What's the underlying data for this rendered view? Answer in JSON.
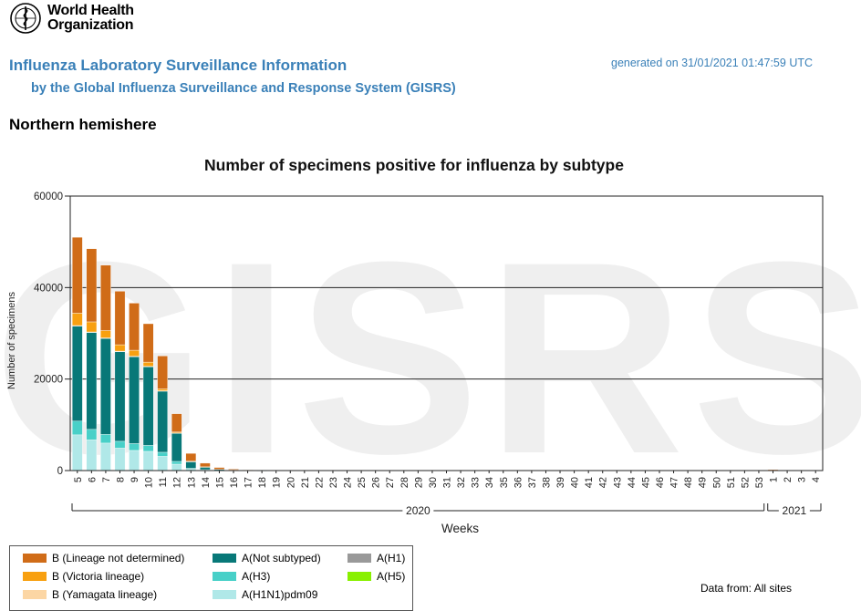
{
  "header": {
    "logo_text_line1": "World Health",
    "logo_text_line2": "Organization",
    "title": "Influenza Laboratory Surveillance Information",
    "subtitle": "by the Global Influenza Surveillance and Response System (GISRS)",
    "generated": "generated on 31/01/2021 01:47:59 UTC",
    "region": "Northern hemishere"
  },
  "footer": {
    "data_from": "Data from: All sites"
  },
  "chart_data": {
    "type": "bar",
    "stacked": true,
    "title": "Number of specimens positive for influenza by subtype",
    "xlabel": "Weeks",
    "ylabel": "Number of specimens",
    "ylim": [
      0,
      60000
    ],
    "yticks": [
      0,
      20000,
      40000,
      60000
    ],
    "grid": true,
    "watermark": "GISRS",
    "legend_position": "bottom",
    "year_groups": [
      {
        "label": "2020",
        "start_index": 0,
        "end_index": 48
      },
      {
        "label": "2021",
        "start_index": 49,
        "end_index": 52
      }
    ],
    "categories": [
      "5",
      "6",
      "7",
      "8",
      "9",
      "10",
      "11",
      "12",
      "13",
      "14",
      "15",
      "16",
      "17",
      "18",
      "19",
      "20",
      "21",
      "22",
      "23",
      "24",
      "25",
      "26",
      "27",
      "28",
      "29",
      "30",
      "31",
      "32",
      "33",
      "34",
      "35",
      "36",
      "37",
      "38",
      "39",
      "40",
      "41",
      "42",
      "43",
      "44",
      "45",
      "46",
      "47",
      "48",
      "49",
      "50",
      "51",
      "52",
      "53",
      "1",
      "2",
      "3",
      "4"
    ],
    "series": [
      {
        "name": "A(H1N1)pdm09",
        "color": "#b0e8e8",
        "values": [
          7800,
          6700,
          6000,
          4900,
          4400,
          4200,
          3100,
          1400,
          300,
          100,
          50,
          20,
          0,
          0,
          0,
          0,
          0,
          0,
          0,
          0,
          0,
          0,
          0,
          0,
          0,
          0,
          0,
          0,
          0,
          0,
          0,
          0,
          0,
          0,
          0,
          0,
          0,
          0,
          0,
          0,
          0,
          0,
          0,
          0,
          0,
          0,
          0,
          0,
          0,
          0,
          0,
          0,
          0
        ]
      },
      {
        "name": "A(H3)",
        "color": "#48d0c8",
        "values": [
          3000,
          2300,
          1900,
          1500,
          1500,
          1300,
          900,
          600,
          200,
          100,
          30,
          10,
          0,
          0,
          0,
          0,
          0,
          0,
          0,
          0,
          0,
          0,
          0,
          0,
          0,
          0,
          0,
          0,
          0,
          0,
          0,
          0,
          0,
          0,
          0,
          0,
          0,
          0,
          0,
          0,
          0,
          0,
          0,
          0,
          0,
          0,
          0,
          0,
          0,
          0,
          0,
          0,
          0
        ]
      },
      {
        "name": "A(Not subtyped)",
        "color": "#087878",
        "values": [
          20800,
          21200,
          21000,
          19600,
          19000,
          17200,
          13400,
          6200,
          1500,
          600,
          200,
          80,
          30,
          10,
          0,
          0,
          0,
          0,
          0,
          0,
          0,
          0,
          0,
          0,
          0,
          0,
          0,
          0,
          0,
          0,
          0,
          0,
          0,
          0,
          0,
          0,
          0,
          0,
          0,
          0,
          0,
          0,
          0,
          0,
          0,
          0,
          0,
          0,
          0,
          0,
          0,
          0,
          0
        ]
      },
      {
        "name": "A(H1)",
        "color": "#999999",
        "values": [
          0,
          0,
          0,
          0,
          0,
          0,
          0,
          0,
          0,
          0,
          0,
          0,
          0,
          0,
          0,
          0,
          0,
          0,
          0,
          0,
          0,
          0,
          0,
          0,
          0,
          0,
          0,
          0,
          0,
          0,
          0,
          0,
          0,
          0,
          0,
          0,
          0,
          0,
          0,
          0,
          0,
          0,
          0,
          0,
          0,
          0,
          0,
          0,
          0,
          0,
          0,
          0,
          0
        ]
      },
      {
        "name": "A(H5)",
        "color": "#88f000",
        "values": [
          0,
          0,
          0,
          0,
          0,
          0,
          0,
          0,
          0,
          0,
          0,
          0,
          0,
          0,
          0,
          0,
          0,
          0,
          0,
          0,
          0,
          0,
          0,
          0,
          0,
          0,
          0,
          0,
          0,
          0,
          0,
          0,
          0,
          0,
          0,
          0,
          0,
          0,
          0,
          0,
          0,
          0,
          0,
          0,
          0,
          0,
          0,
          0,
          0,
          0,
          0,
          0,
          0
        ]
      },
      {
        "name": "B (Yamagata lineage)",
        "color": "#fcd6a4",
        "values": [
          100,
          100,
          100,
          100,
          100,
          100,
          50,
          30,
          10,
          0,
          0,
          0,
          0,
          0,
          0,
          0,
          0,
          0,
          0,
          0,
          0,
          0,
          0,
          0,
          0,
          0,
          0,
          0,
          0,
          0,
          0,
          0,
          0,
          0,
          0,
          0,
          0,
          0,
          0,
          0,
          0,
          0,
          0,
          0,
          0,
          0,
          0,
          0,
          0,
          0,
          0,
          0,
          0
        ]
      },
      {
        "name": "B (Victoria lineage)",
        "color": "#f8a010",
        "values": [
          2700,
          2200,
          1600,
          1400,
          1300,
          900,
          400,
          200,
          50,
          20,
          0,
          0,
          0,
          0,
          0,
          0,
          0,
          0,
          0,
          0,
          0,
          0,
          0,
          0,
          0,
          0,
          0,
          0,
          0,
          0,
          0,
          0,
          0,
          0,
          0,
          0,
          0,
          0,
          0,
          0,
          0,
          0,
          0,
          0,
          0,
          0,
          0,
          0,
          0,
          0,
          0,
          0,
          0
        ]
      },
      {
        "name": "B (Lineage not determined)",
        "color": "#d06c18",
        "values": [
          16600,
          16000,
          14300,
          11700,
          10300,
          8400,
          7200,
          4000,
          1700,
          800,
          400,
          200,
          100,
          80,
          60,
          50,
          40,
          30,
          30,
          30,
          30,
          30,
          30,
          30,
          30,
          30,
          30,
          30,
          30,
          30,
          30,
          30,
          30,
          30,
          30,
          30,
          30,
          30,
          30,
          30,
          30,
          30,
          30,
          30,
          30,
          30,
          30,
          30,
          30,
          200,
          100,
          80,
          60
        ]
      }
    ]
  }
}
